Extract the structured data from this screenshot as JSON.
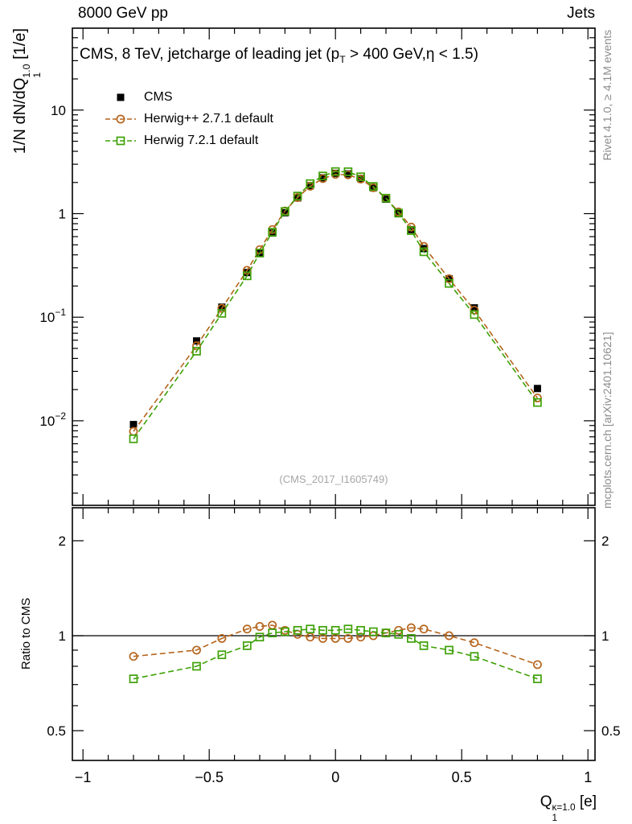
{
  "header": {
    "left": "8000 GeV pp",
    "right": "Jets"
  },
  "title": {
    "pre": "CMS, 8 TeV, jetcharge of leading jet (p",
    "sub": "T",
    "post": " > 400 GeV,η < 1.5)"
  },
  "labels": {
    "y_main": {
      "pre": "1/N dN/dQ",
      "sub": "1",
      "sup": "1.0",
      "post": " [1/e]"
    },
    "y_ratio": "Ratio to CMS",
    "x": {
      "pre": "Q",
      "sub": "1",
      "sup": "κ=1.0",
      "post": " [e]"
    }
  },
  "watermark": "(CMS_2017_I1605749)",
  "notes": {
    "top": "Rivet 4.1.0, ≥ 4.1M events",
    "bottom": "mcplots.cern.ch [arXiv:2401.10621]"
  },
  "legend": [
    {
      "label": "CMS",
      "marker": "filled-square",
      "color": "#000000",
      "line": "none"
    },
    {
      "label": "Herwig++ 2.7.1 default",
      "marker": "open-circle",
      "color": "#b5651d",
      "line": "dashed"
    },
    {
      "label": "Herwig 7.2.1 default",
      "marker": "open-square",
      "color": "#3fa108",
      "line": "dashed"
    }
  ],
  "axes": {
    "x_ticks": [
      -1,
      -0.5,
      0,
      0.5,
      1
    ],
    "x_tick_labels": [
      "−1",
      "−0.5",
      "0",
      "0.5",
      "1"
    ],
    "main_y_ticks": [
      {
        "v": 10,
        "label": "10"
      },
      {
        "v": 1,
        "label": "1"
      },
      {
        "v": 0.1,
        "label": "10",
        "sup": "−1"
      },
      {
        "v": 0.01,
        "label": "10",
        "sup": "−2"
      }
    ],
    "ratio_y_ticks": [
      {
        "v": 2,
        "label": "2"
      },
      {
        "v": 1,
        "label": "1"
      },
      {
        "v": 0.5,
        "label": "0.5"
      }
    ]
  },
  "chart_data": {
    "type": "line",
    "title": "CMS, 8 TeV, jetcharge of leading jet (pT > 400 GeV, η < 1.5)",
    "xlabel": "Q1^{κ=1.0} [e]",
    "ylabel": "1/N dN/dQ1^{1.0} [1/e]",
    "ratio_ylabel": "Ratio to CMS",
    "yscale": "log",
    "ratio_yscale": "log",
    "xlim": [
      -1.04,
      1.03
    ],
    "main_ylim": [
      0.0015,
      55
    ],
    "ratio_ylim": [
      0.4,
      2.56
    ],
    "x": [
      -0.8,
      -0.55,
      -0.45,
      -0.35,
      -0.3,
      -0.25,
      -0.2,
      -0.15,
      -0.1,
      -0.05,
      0,
      0.05,
      0.1,
      0.15,
      0.2,
      0.25,
      0.3,
      0.35,
      0.45,
      0.55,
      0.8
    ],
    "series": [
      {
        "id": "cms",
        "name": "CMS",
        "marker": "filled-square",
        "color": "#000000",
        "line": "none",
        "values": [
          0.0092,
          0.059,
          0.125,
          0.27,
          0.42,
          0.65,
          1.02,
          1.42,
          1.86,
          2.22,
          2.45,
          2.42,
          2.18,
          1.78,
          1.38,
          1.0,
          0.7,
          0.46,
          0.235,
          0.123,
          0.0205
        ]
      },
      {
        "id": "herwigpp",
        "name": "Herwig++ 2.7.1 default",
        "marker": "open-circle",
        "color": "#b5651d",
        "line": "dashed",
        "values": [
          0.0079,
          0.053,
          0.122,
          0.284,
          0.449,
          0.702,
          1.06,
          1.43,
          1.84,
          2.18,
          2.4,
          2.37,
          2.16,
          1.78,
          1.41,
          1.04,
          0.742,
          0.483,
          0.235,
          0.117,
          0.0166
        ],
        "ratio_to_cms": [
          0.86,
          0.9,
          0.98,
          1.05,
          1.07,
          1.08,
          1.04,
          1.01,
          0.99,
          0.98,
          0.98,
          0.98,
          0.99,
          1.0,
          1.02,
          1.04,
          1.06,
          1.05,
          1.0,
          0.95,
          0.81
        ]
      },
      {
        "id": "herwig7",
        "name": "Herwig 7.2.1 default",
        "marker": "open-square",
        "color": "#3fa108",
        "line": "dashed",
        "values": [
          0.0067,
          0.047,
          0.109,
          0.251,
          0.416,
          0.663,
          1.05,
          1.48,
          1.95,
          2.31,
          2.55,
          2.54,
          2.27,
          1.83,
          1.41,
          1.01,
          0.686,
          0.428,
          0.212,
          0.106,
          0.015
        ],
        "ratio_to_cms": [
          0.73,
          0.8,
          0.87,
          0.93,
          0.99,
          1.02,
          1.03,
          1.04,
          1.05,
          1.04,
          1.04,
          1.05,
          1.04,
          1.03,
          1.02,
          1.01,
          0.98,
          0.93,
          0.9,
          0.86,
          0.73
        ]
      }
    ]
  }
}
